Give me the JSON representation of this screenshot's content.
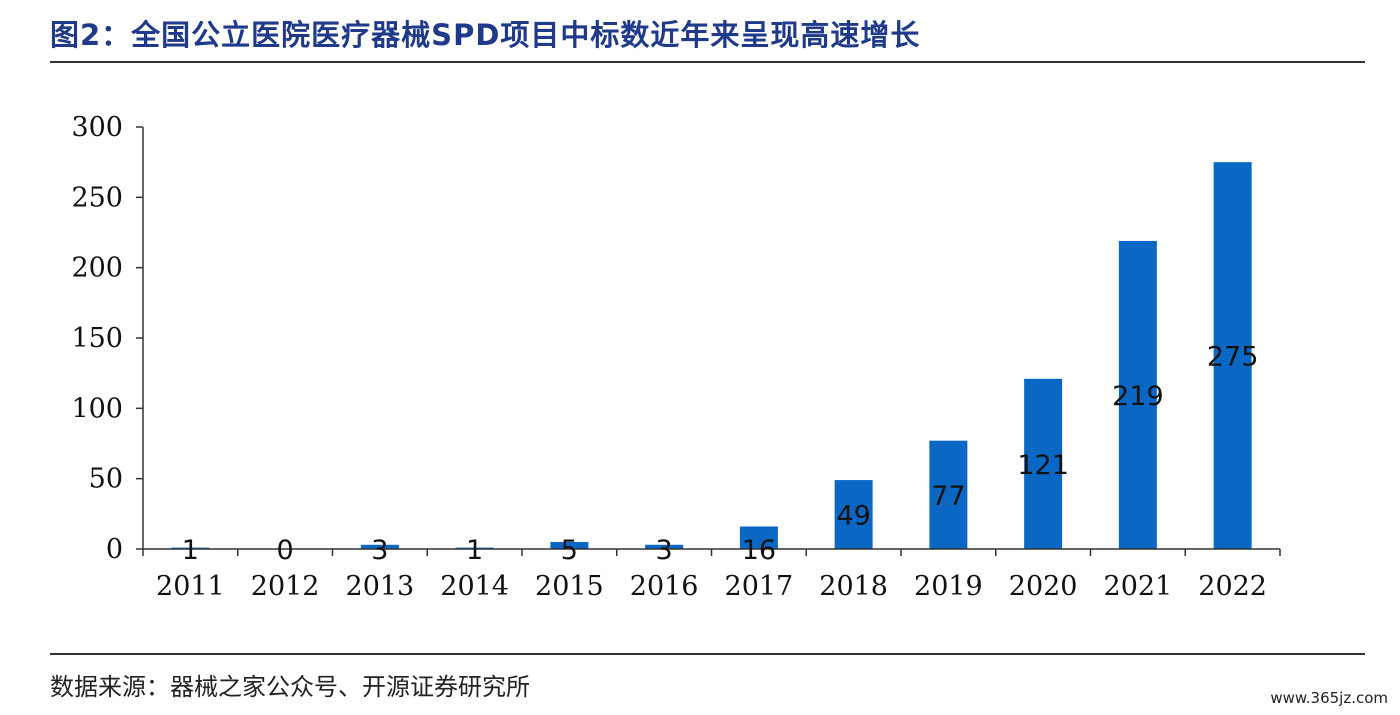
{
  "title": "图2：全国公立医院医疗器械SPD项目中标数近年来呈现高速增长",
  "source": "数据来源：器械之家公众号、开源证券研究所",
  "watermark": "www.365jz.com",
  "colors": {
    "bar": "#0a67c4",
    "title": "#1f3a8a",
    "axis": "#333333"
  },
  "chart_data": {
    "type": "bar",
    "categories": [
      "2011",
      "2012",
      "2013",
      "2014",
      "2015",
      "2016",
      "2017",
      "2018",
      "2019",
      "2020",
      "2021",
      "2022"
    ],
    "values": [
      1,
      0,
      3,
      1,
      5,
      3,
      16,
      49,
      77,
      121,
      219,
      275
    ],
    "data_labels": [
      "1",
      "0",
      "3",
      "1",
      "5",
      "3",
      "16",
      "49",
      "77",
      "121",
      "219",
      "275"
    ],
    "ylim": [
      0,
      300
    ],
    "yticks": [
      0,
      50,
      100,
      150,
      200,
      250,
      300
    ],
    "ytick_labels": [
      "0",
      "50",
      "100",
      "150",
      "200",
      "250",
      "300"
    ],
    "grid": false,
    "legend": "none"
  }
}
